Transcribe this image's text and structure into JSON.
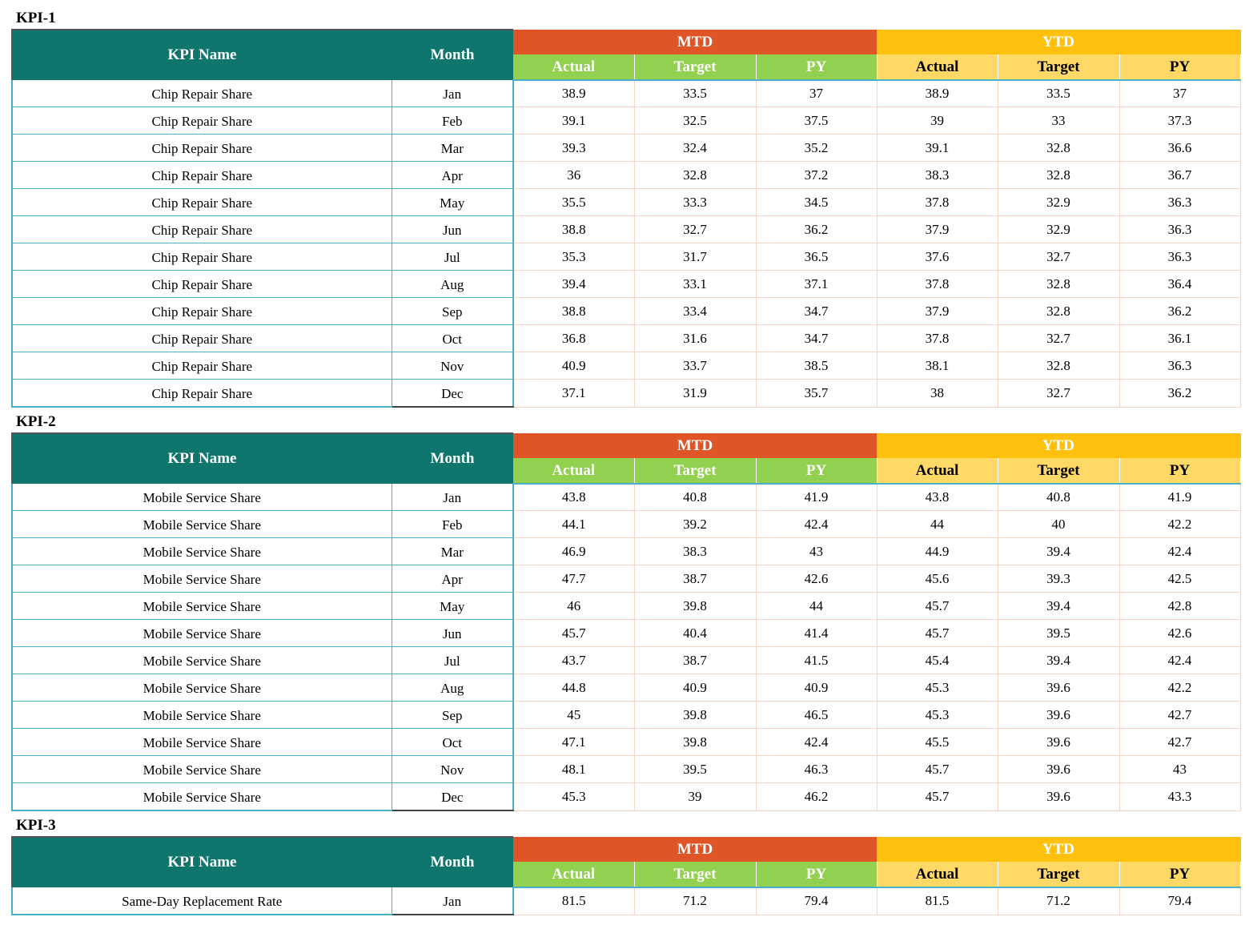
{
  "headers": {
    "kpi_name": "KPI Name",
    "month": "Month",
    "mtd": "MTD",
    "ytd": "YTD",
    "actual": "Actual",
    "target": "Target",
    "py": "PY"
  },
  "colors": {
    "header_teal": "#0f766e",
    "mtd_orange": "#e05527",
    "ytd_gold": "#ffc10d",
    "mtd_sub_green": "#92d050",
    "ytd_sub_yellow": "#ffd966"
  },
  "tables": [
    {
      "title": "KPI-1",
      "rows": [
        {
          "name": "Chip Repair Share",
          "month": "Jan",
          "mtd_actual": "38.9",
          "mtd_target": "33.5",
          "mtd_py": "37",
          "ytd_actual": "38.9",
          "ytd_target": "33.5",
          "ytd_py": "37"
        },
        {
          "name": "Chip Repair Share",
          "month": "Feb",
          "mtd_actual": "39.1",
          "mtd_target": "32.5",
          "mtd_py": "37.5",
          "ytd_actual": "39",
          "ytd_target": "33",
          "ytd_py": "37.3"
        },
        {
          "name": "Chip Repair Share",
          "month": "Mar",
          "mtd_actual": "39.3",
          "mtd_target": "32.4",
          "mtd_py": "35.2",
          "ytd_actual": "39.1",
          "ytd_target": "32.8",
          "ytd_py": "36.6"
        },
        {
          "name": "Chip Repair Share",
          "month": "Apr",
          "mtd_actual": "36",
          "mtd_target": "32.8",
          "mtd_py": "37.2",
          "ytd_actual": "38.3",
          "ytd_target": "32.8",
          "ytd_py": "36.7"
        },
        {
          "name": "Chip Repair Share",
          "month": "May",
          "mtd_actual": "35.5",
          "mtd_target": "33.3",
          "mtd_py": "34.5",
          "ytd_actual": "37.8",
          "ytd_target": "32.9",
          "ytd_py": "36.3"
        },
        {
          "name": "Chip Repair Share",
          "month": "Jun",
          "mtd_actual": "38.8",
          "mtd_target": "32.7",
          "mtd_py": "36.2",
          "ytd_actual": "37.9",
          "ytd_target": "32.9",
          "ytd_py": "36.3"
        },
        {
          "name": "Chip Repair Share",
          "month": "Jul",
          "mtd_actual": "35.3",
          "mtd_target": "31.7",
          "mtd_py": "36.5",
          "ytd_actual": "37.6",
          "ytd_target": "32.7",
          "ytd_py": "36.3"
        },
        {
          "name": "Chip Repair Share",
          "month": "Aug",
          "mtd_actual": "39.4",
          "mtd_target": "33.1",
          "mtd_py": "37.1",
          "ytd_actual": "37.8",
          "ytd_target": "32.8",
          "ytd_py": "36.4"
        },
        {
          "name": "Chip Repair Share",
          "month": "Sep",
          "mtd_actual": "38.8",
          "mtd_target": "33.4",
          "mtd_py": "34.7",
          "ytd_actual": "37.9",
          "ytd_target": "32.8",
          "ytd_py": "36.2"
        },
        {
          "name": "Chip Repair Share",
          "month": "Oct",
          "mtd_actual": "36.8",
          "mtd_target": "31.6",
          "mtd_py": "34.7",
          "ytd_actual": "37.8",
          "ytd_target": "32.7",
          "ytd_py": "36.1"
        },
        {
          "name": "Chip Repair Share",
          "month": "Nov",
          "mtd_actual": "40.9",
          "mtd_target": "33.7",
          "mtd_py": "38.5",
          "ytd_actual": "38.1",
          "ytd_target": "32.8",
          "ytd_py": "36.3"
        },
        {
          "name": "Chip Repair Share",
          "month": "Dec",
          "mtd_actual": "37.1",
          "mtd_target": "31.9",
          "mtd_py": "35.7",
          "ytd_actual": "38",
          "ytd_target": "32.7",
          "ytd_py": "36.2"
        }
      ]
    },
    {
      "title": "KPI-2",
      "rows": [
        {
          "name": "Mobile Service Share",
          "month": "Jan",
          "mtd_actual": "43.8",
          "mtd_target": "40.8",
          "mtd_py": "41.9",
          "ytd_actual": "43.8",
          "ytd_target": "40.8",
          "ytd_py": "41.9"
        },
        {
          "name": "Mobile Service Share",
          "month": "Feb",
          "mtd_actual": "44.1",
          "mtd_target": "39.2",
          "mtd_py": "42.4",
          "ytd_actual": "44",
          "ytd_target": "40",
          "ytd_py": "42.2"
        },
        {
          "name": "Mobile Service Share",
          "month": "Mar",
          "mtd_actual": "46.9",
          "mtd_target": "38.3",
          "mtd_py": "43",
          "ytd_actual": "44.9",
          "ytd_target": "39.4",
          "ytd_py": "42.4"
        },
        {
          "name": "Mobile Service Share",
          "month": "Apr",
          "mtd_actual": "47.7",
          "mtd_target": "38.7",
          "mtd_py": "42.6",
          "ytd_actual": "45.6",
          "ytd_target": "39.3",
          "ytd_py": "42.5"
        },
        {
          "name": "Mobile Service Share",
          "month": "May",
          "mtd_actual": "46",
          "mtd_target": "39.8",
          "mtd_py": "44",
          "ytd_actual": "45.7",
          "ytd_target": "39.4",
          "ytd_py": "42.8"
        },
        {
          "name": "Mobile Service Share",
          "month": "Jun",
          "mtd_actual": "45.7",
          "mtd_target": "40.4",
          "mtd_py": "41.4",
          "ytd_actual": "45.7",
          "ytd_target": "39.5",
          "ytd_py": "42.6"
        },
        {
          "name": "Mobile Service Share",
          "month": "Jul",
          "mtd_actual": "43.7",
          "mtd_target": "38.7",
          "mtd_py": "41.5",
          "ytd_actual": "45.4",
          "ytd_target": "39.4",
          "ytd_py": "42.4"
        },
        {
          "name": "Mobile Service Share",
          "month": "Aug",
          "mtd_actual": "44.8",
          "mtd_target": "40.9",
          "mtd_py": "40.9",
          "ytd_actual": "45.3",
          "ytd_target": "39.6",
          "ytd_py": "42.2"
        },
        {
          "name": "Mobile Service Share",
          "month": "Sep",
          "mtd_actual": "45",
          "mtd_target": "39.8",
          "mtd_py": "46.5",
          "ytd_actual": "45.3",
          "ytd_target": "39.6",
          "ytd_py": "42.7"
        },
        {
          "name": "Mobile Service Share",
          "month": "Oct",
          "mtd_actual": "47.1",
          "mtd_target": "39.8",
          "mtd_py": "42.4",
          "ytd_actual": "45.5",
          "ytd_target": "39.6",
          "ytd_py": "42.7"
        },
        {
          "name": "Mobile Service Share",
          "month": "Nov",
          "mtd_actual": "48.1",
          "mtd_target": "39.5",
          "mtd_py": "46.3",
          "ytd_actual": "45.7",
          "ytd_target": "39.6",
          "ytd_py": "43"
        },
        {
          "name": "Mobile Service Share",
          "month": "Dec",
          "mtd_actual": "45.3",
          "mtd_target": "39",
          "mtd_py": "46.2",
          "ytd_actual": "45.7",
          "ytd_target": "39.6",
          "ytd_py": "43.3"
        }
      ]
    },
    {
      "title": "KPI-3",
      "rows": [
        {
          "name": "Same-Day Replacement Rate",
          "month": "Jan",
          "mtd_actual": "81.5",
          "mtd_target": "71.2",
          "mtd_py": "79.4",
          "ytd_actual": "81.5",
          "ytd_target": "71.2",
          "ytd_py": "79.4"
        }
      ]
    }
  ]
}
